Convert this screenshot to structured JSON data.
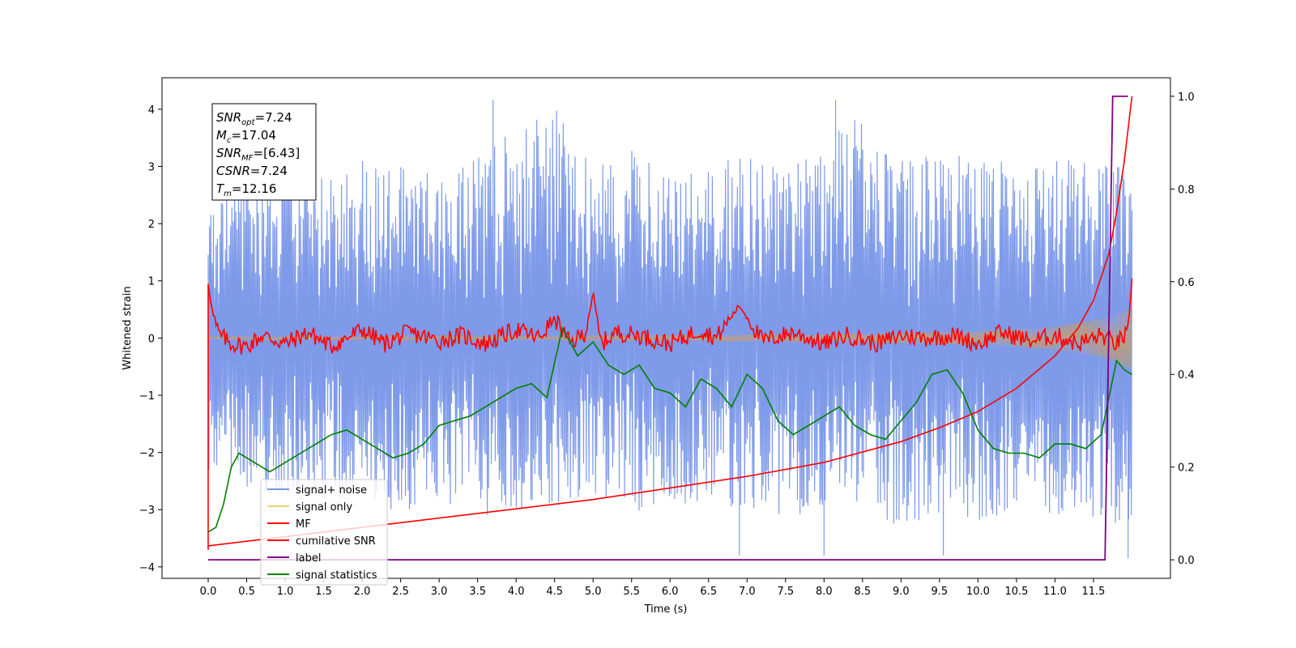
{
  "chart_data": {
    "type": "line",
    "xlabel": "Time (s)",
    "ylabel": "Whitened strain",
    "ylabel_right": "",
    "xlim": [
      -0.6,
      12.5
    ],
    "ylim": [
      -4.2,
      4.55
    ],
    "ylim_right": [
      -0.04,
      1.04
    ],
    "x_ticks": [
      "0.0",
      "0.5",
      "1.0",
      "1.5",
      "2.0",
      "2.5",
      "3.0",
      "3.5",
      "4.0",
      "4.5",
      "5.0",
      "5.5",
      "6.0",
      "6.5",
      "7.0",
      "7.5",
      "8.0",
      "8.5",
      "9.0",
      "9.5",
      "10.0",
      "10.5",
      "11.0",
      "11.5"
    ],
    "y_ticks": [
      "4",
      "3",
      "2",
      "1",
      "0",
      "−1",
      "−2",
      "−3",
      "−4"
    ],
    "y_ticks_right": [
      "1.0",
      "0.8",
      "0.6",
      "0.4",
      "0.2",
      "0.0"
    ],
    "grid": false,
    "legend_placement": "lower-left",
    "legend": [
      {
        "label": "signal+ noise",
        "color": "#7795e8"
      },
      {
        "label": "signal only",
        "color": "#f5cf7a"
      },
      {
        "label": "MF",
        "color": "#ff0000"
      },
      {
        "label": "cumilative SNR",
        "color": "#ff0000"
      },
      {
        "label": "label",
        "color": "#800080"
      },
      {
        "label": "signal statistics",
        "color": "#008000"
      }
    ],
    "annotation": {
      "lines": [
        {
          "base": "SNR",
          "sub": "opt",
          "rest": "=7.24"
        },
        {
          "base": "M",
          "sub": "c",
          "rest": "=17.04"
        },
        {
          "base": "SNR",
          "sub": "MF",
          "rest": "=[6.43]"
        },
        {
          "base": "CSNR",
          "sub": "",
          "rest": "=7.24"
        },
        {
          "base": "T",
          "sub": "m",
          "rest": "=12.16"
        }
      ]
    },
    "series": [
      {
        "name": "signal+ noise",
        "axis": "left",
        "color": "#7795e8",
        "note_shape": "dense noise band",
        "x_range": [
          0,
          12.0
        ],
        "envelope_upper": [
          2.3,
          2.9,
          3.1,
          2.8,
          3.2,
          3.0,
          2.9,
          3.3,
          3.7,
          4.1,
          3.0,
          3.3,
          2.9,
          3.1,
          3.2,
          3.0,
          3.4,
          4.0,
          3.1,
          3.2,
          3.3,
          3.0,
          3.2,
          3.1,
          3.0
        ],
        "envelope_lower": [
          -2.3,
          -2.6,
          -2.8,
          -3.0,
          -2.7,
          -3.1,
          -2.9,
          -3.2,
          -3.0,
          -3.1,
          -2.8,
          -3.0,
          -3.1,
          -2.9,
          -3.0,
          -3.2,
          -3.1,
          -3.0,
          -3.3,
          -3.1,
          -3.2,
          -3.0,
          -3.1,
          -3.3,
          -3.2
        ],
        "peak_points": [
          [
            3.7,
            4.16
          ],
          [
            8.15,
            4.16
          ],
          [
            6.9,
            -3.8
          ],
          [
            8.0,
            -3.8
          ],
          [
            9.55,
            -3.8
          ],
          [
            11.95,
            -3.85
          ]
        ]
      },
      {
        "name": "signal only",
        "axis": "left",
        "color": "#c8a070",
        "x": [
          0,
          3,
          6,
          8,
          9,
          10,
          10.5,
          11,
          11.5,
          11.75,
          12.0
        ],
        "amplitude": [
          0.02,
          0.03,
          0.05,
          0.07,
          0.09,
          0.12,
          0.15,
          0.2,
          0.3,
          0.38,
          0.55
        ]
      },
      {
        "name": "MF",
        "axis": "left",
        "color": "#ff0000",
        "x": [
          0,
          0.05,
          0.1,
          0.15,
          0.2,
          0.3,
          0.5,
          0.7,
          1.0,
          1.3,
          1.6,
          2.0,
          2.3,
          2.6,
          3.0,
          3.3,
          3.6,
          4.0,
          4.3,
          4.5,
          4.7,
          4.9,
          5.0,
          5.1,
          5.3,
          5.6,
          6.0,
          6.4,
          6.6,
          6.9,
          7.2,
          7.6,
          8.0,
          8.3,
          8.7,
          9.0,
          9.3,
          9.7,
          10.0,
          10.3,
          10.7,
          11.0,
          11.3,
          11.6,
          11.8,
          11.95,
          12.0
        ],
        "y": [
          0.95,
          0.5,
          0.2,
          0.05,
          0.0,
          -0.1,
          -0.15,
          0.05,
          -0.1,
          0.1,
          -0.15,
          0.15,
          -0.1,
          0.1,
          -0.05,
          0.05,
          -0.1,
          0.15,
          0.0,
          0.35,
          -0.1,
          0.1,
          0.78,
          -0.1,
          0.1,
          0.05,
          -0.1,
          0.15,
          0.0,
          0.57,
          -0.05,
          0.1,
          -0.1,
          0.05,
          -0.1,
          0.05,
          0.0,
          0.05,
          -0.1,
          0.1,
          -0.05,
          0.05,
          -0.1,
          0.05,
          -0.1,
          0.1,
          1.0
        ]
      },
      {
        "name": "cumilative SNR",
        "axis": "right",
        "color": "#ff0000",
        "x": [
          0,
          0.5,
          1.0,
          2.0,
          3.0,
          4.0,
          5.0,
          6.0,
          7.0,
          8.0,
          9.0,
          9.5,
          10.0,
          10.5,
          11.0,
          11.3,
          11.5,
          11.7,
          11.8,
          11.9,
          12.0
        ],
        "y": [
          0.03,
          0.04,
          0.05,
          0.07,
          0.09,
          0.11,
          0.13,
          0.155,
          0.18,
          0.21,
          0.255,
          0.285,
          0.32,
          0.37,
          0.44,
          0.5,
          0.56,
          0.66,
          0.75,
          0.86,
          1.0
        ]
      },
      {
        "name": "label",
        "axis": "right",
        "color": "#800080",
        "x": [
          0,
          11.65,
          11.75,
          11.95
        ],
        "y": [
          0.0,
          0.0,
          1.0,
          1.0
        ]
      },
      {
        "name": "signal statistics",
        "axis": "right",
        "color": "#008000",
        "x": [
          0,
          0.1,
          0.2,
          0.3,
          0.4,
          0.5,
          0.7,
          0.8,
          1.0,
          1.2,
          1.4,
          1.6,
          1.8,
          2.0,
          2.2,
          2.4,
          2.6,
          2.8,
          3.0,
          3.2,
          3.4,
          3.6,
          3.8,
          4.0,
          4.2,
          4.4,
          4.6,
          4.8,
          5.0,
          5.2,
          5.4,
          5.6,
          5.8,
          6.0,
          6.2,
          6.4,
          6.6,
          6.8,
          7.0,
          7.2,
          7.4,
          7.6,
          7.8,
          8.0,
          8.2,
          8.4,
          8.6,
          8.8,
          9.0,
          9.2,
          9.4,
          9.6,
          9.8,
          10.0,
          10.2,
          10.4,
          10.6,
          10.8,
          11.0,
          11.2,
          11.4,
          11.6,
          11.8,
          11.9,
          12.0
        ],
        "y": [
          0.06,
          0.07,
          0.12,
          0.2,
          0.23,
          0.22,
          0.2,
          0.19,
          0.21,
          0.23,
          0.25,
          0.27,
          0.28,
          0.26,
          0.24,
          0.22,
          0.23,
          0.25,
          0.29,
          0.3,
          0.31,
          0.33,
          0.35,
          0.37,
          0.38,
          0.35,
          0.5,
          0.44,
          0.47,
          0.42,
          0.4,
          0.42,
          0.37,
          0.36,
          0.33,
          0.39,
          0.37,
          0.33,
          0.4,
          0.37,
          0.3,
          0.27,
          0.29,
          0.31,
          0.33,
          0.29,
          0.27,
          0.26,
          0.3,
          0.34,
          0.4,
          0.41,
          0.36,
          0.28,
          0.24,
          0.23,
          0.23,
          0.22,
          0.25,
          0.25,
          0.24,
          0.27,
          0.43,
          0.41,
          0.4
        ]
      }
    ]
  }
}
